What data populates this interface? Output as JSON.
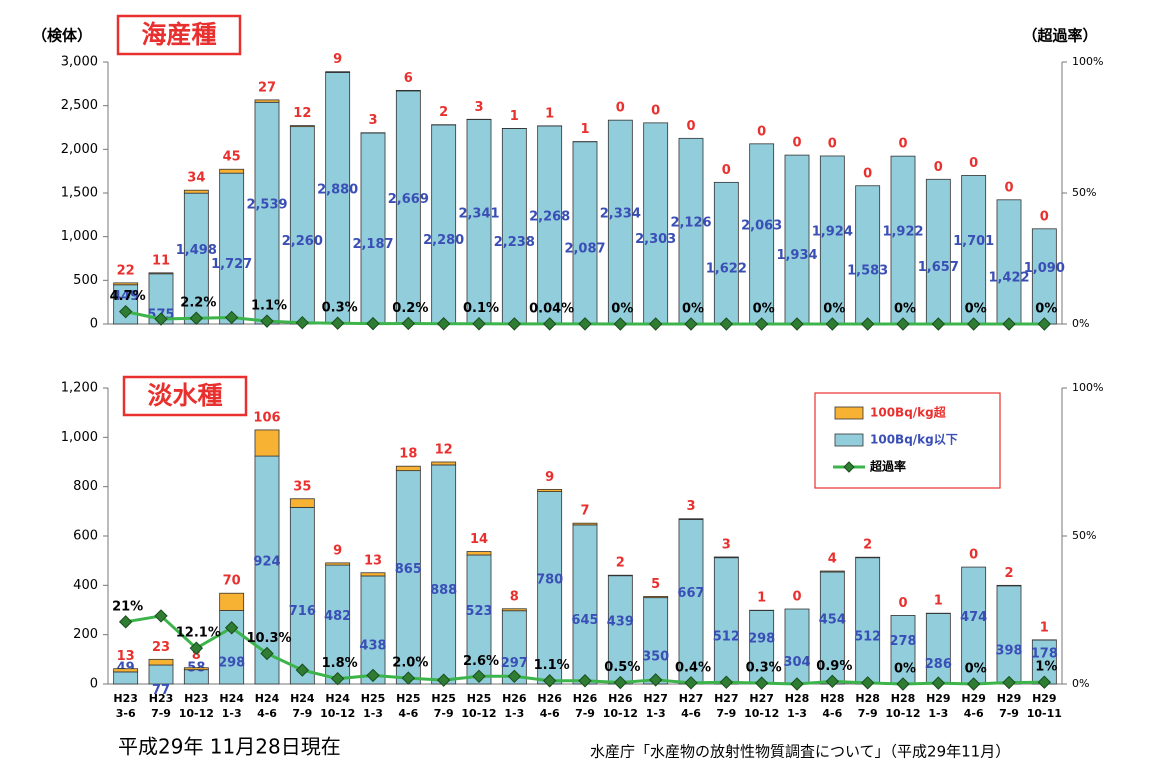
{
  "chart_data": [
    {
      "type": "bar",
      "stacked": true,
      "title": "海産種",
      "ylabel": "（検体）",
      "y2label": "（超過率）",
      "series": [
        {
          "color": "#92cddc",
          "values": [
            449,
            575,
            1498,
            1727,
            2539,
            2260,
            2880,
            2187,
            2669,
            2280,
            2341,
            2238,
            2268,
            2087,
            2334,
            2303,
            2126,
            1622,
            2063,
            1934,
            1924,
            1583,
            1922,
            1657,
            1701,
            1422,
            1090
          ],
          "value_labels": [
            "449",
            "575",
            "1,498",
            "1,727",
            "2,539",
            "2,260",
            "2,880",
            "2,187",
            "2,669",
            "2,280",
            "2,341",
            "2,238",
            "2,268",
            "2,087",
            "2,334",
            "2,303",
            "2,126",
            "1,622",
            "2,063",
            "1,934",
            "1,924",
            "1,583",
            "1,922",
            "1,657",
            "1,701",
            "1,422",
            "1,090"
          ]
        },
        {
          "color": "#f7b234",
          "values": [
            22,
            11,
            34,
            45,
            27,
            12,
            9,
            3,
            6,
            2,
            3,
            1,
            1,
            1,
            0,
            0,
            0,
            0,
            0,
            0,
            0,
            0,
            0,
            0,
            0,
            0,
            0
          ]
        },
        {
          "type": "line",
          "axis": "y2",
          "color": "#3cb44b",
          "marker_color": "#2e7d32",
          "values": [
            4.7,
            1.9,
            2.2,
            2.5,
            1.1,
            0.5,
            0.3,
            0.14,
            0.2,
            0.09,
            0.1,
            0.04,
            0.04,
            0.05,
            0,
            0,
            0,
            0,
            0,
            0,
            0,
            0,
            0,
            0,
            0,
            0,
            0
          ],
          "value_labels": [
            "4.7%",
            null,
            "2.2%",
            null,
            "1.1%",
            null,
            "0.3%",
            null,
            "0.2%",
            null,
            "0.1%",
            null,
            "0.04%",
            null,
            "0%",
            null,
            "0%",
            null,
            "0%",
            null,
            "0%",
            null,
            "0%",
            null,
            "0%",
            null,
            "0%"
          ]
        }
      ],
      "ylim": [
        0,
        3000
      ],
      "yticks": [
        0,
        500,
        {
          "value": 1000,
          "label": "1,000"
        },
        {
          "value": 1500,
          "label": "1,500"
        },
        {
          "value": 2000,
          "label": "2,000"
        },
        {
          "value": 2500,
          "label": "2,500"
        },
        {
          "value": 3000,
          "label": "3,000"
        }
      ],
      "y2lim": [
        0,
        100
      ],
      "y2ticks": [
        {
          "value": 0,
          "label": "0%"
        },
        {
          "value": 50,
          "label": "50%"
        },
        {
          "value": 100,
          "label": "100%"
        }
      ]
    },
    {
      "type": "bar",
      "stacked": true,
      "title": "淡水種",
      "legend": "upper right",
      "categories": [
        [
          "H23",
          "3-6"
        ],
        [
          "H23",
          "7-9"
        ],
        [
          "H23",
          "10-12"
        ],
        [
          "H24",
          "1-3"
        ],
        [
          "H24",
          "4-6"
        ],
        [
          "H24",
          "7-9"
        ],
        [
          "H24",
          "10-12"
        ],
        [
          "H25",
          "1-3"
        ],
        [
          "H25",
          "4-6"
        ],
        [
          "H25",
          "7-9"
        ],
        [
          "H25",
          "10-12"
        ],
        [
          "H26",
          "1-3"
        ],
        [
          "H26",
          "4-6"
        ],
        [
          "H26",
          "7-9"
        ],
        [
          "H26",
          "10-12"
        ],
        [
          "H27",
          "1-3"
        ],
        [
          "H27",
          "4-6"
        ],
        [
          "H27",
          "7-9"
        ],
        [
          "H27",
          "10-12"
        ],
        [
          "H28",
          "1-3"
        ],
        [
          "H28",
          "4-6"
        ],
        [
          "H28",
          "7-9"
        ],
        [
          "H28",
          "10-12"
        ],
        [
          "H29",
          "1-3"
        ],
        [
          "H29",
          "4-6"
        ],
        [
          "H29",
          "7-9"
        ],
        [
          "H29",
          "10-11"
        ]
      ],
      "series": [
        {
          "name": "100Bq/kg以下",
          "color": "#92cddc",
          "values": [
            49,
            77,
            58,
            298,
            924,
            716,
            482,
            438,
            865,
            888,
            523,
            297,
            780,
            645,
            439,
            350,
            667,
            512,
            298,
            304,
            454,
            512,
            278,
            286,
            474,
            398,
            178
          ]
        },
        {
          "name": "100Bq/kg超",
          "color": "#f7b234",
          "values": [
            13,
            23,
            8,
            70,
            106,
            35,
            9,
            13,
            18,
            12,
            14,
            8,
            9,
            7,
            2,
            5,
            3,
            3,
            1,
            0,
            4,
            2,
            0,
            1,
            0,
            2,
            1
          ]
        },
        {
          "name": "超過率",
          "type": "line",
          "axis": "y2",
          "color": "#3cb44b",
          "marker_color": "#2e7d32",
          "values": [
            21,
            23,
            12.1,
            19,
            10.3,
            4.7,
            1.8,
            2.9,
            2.0,
            1.3,
            2.6,
            2.6,
            1.1,
            1.1,
            0.5,
            1.4,
            0.4,
            0.6,
            0.3,
            0,
            0.9,
            0.4,
            0,
            0.3,
            0,
            0.5,
            0.6
          ],
          "value_labels": [
            "21%",
            null,
            "12.1%",
            null,
            "10.3%",
            null,
            "1.8%",
            null,
            "2.0%",
            null,
            "2.6%",
            null,
            "1.1%",
            null,
            "0.5%",
            null,
            "0.4%",
            null,
            "0.3%",
            null,
            "0.9%",
            null,
            "0%",
            null,
            "0%",
            null,
            "1%"
          ]
        }
      ],
      "ylim": [
        0,
        1200
      ],
      "yticks": [
        0,
        200,
        400,
        600,
        800,
        {
          "value": 1000,
          "label": "1,000"
        },
        {
          "value": 1200,
          "label": "1,200"
        }
      ],
      "y2lim": [
        0,
        100
      ],
      "y2ticks": [
        {
          "value": 0,
          "label": "0%"
        },
        {
          "value": 50,
          "label": "50%"
        },
        {
          "value": 100,
          "label": "100%"
        }
      ]
    }
  ],
  "footer": {
    "date": "平成29年 11月28日現在",
    "source": "水産庁「水産物の放射性物質調査について」（平成29年11月）"
  }
}
